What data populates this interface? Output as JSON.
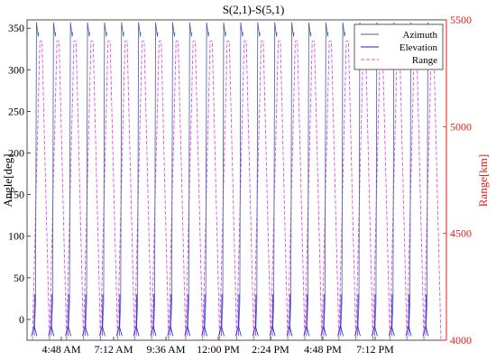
{
  "chart_data": {
    "type": "line",
    "title": "S(2,1)-S(5,1)",
    "ylabel_left": "Angle[deg]",
    "ylabel_right": "Range[km]",
    "xlabel": "",
    "ylim_left": [
      -25,
      360
    ],
    "ylim_right": [
      4000,
      5500
    ],
    "yticks_left": [
      0,
      50,
      100,
      150,
      200,
      250,
      300,
      350
    ],
    "yticks_right": [
      4000,
      4500,
      5000,
      5500
    ],
    "x_tick_labels": [
      "4:48 AM",
      "7:12 AM",
      "9:36 AM",
      "12:00 PM",
      "2:24 PM",
      "4:48 PM",
      "7:12 PM"
    ],
    "grid": false,
    "legend_position": "top-right",
    "series": [
      {
        "name": "Azimuth",
        "axis": "left",
        "color": "#4a5aa8",
        "style": "solid",
        "min": -20,
        "max": 357,
        "cycles": 24
      },
      {
        "name": "Elevation",
        "axis": "left",
        "color": "#2222dd",
        "style": "solid",
        "min": -20,
        "max": 30,
        "cycles": 24
      },
      {
        "name": "Range",
        "axis": "right",
        "color": "#dd55dd",
        "style": "dashed",
        "min": 4000,
        "max": 5400,
        "cycles": 24
      }
    ]
  },
  "colors": {
    "left_axis": "#000000",
    "right_axis": "#e0201c"
  }
}
